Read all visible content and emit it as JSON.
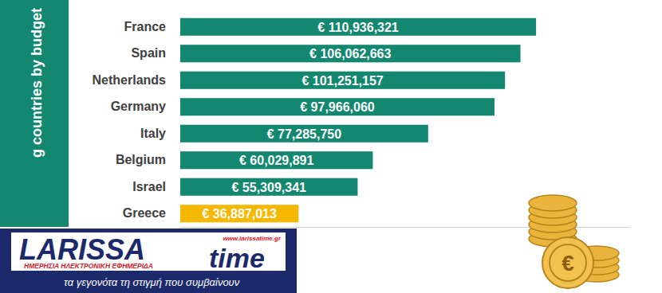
{
  "chart_data": {
    "type": "bar",
    "title": "g countries by budget",
    "orientation": "horizontal",
    "categories": [
      "France",
      "Spain",
      "Netherlands",
      "Germany",
      "Italy",
      "Belgium",
      "Israel",
      "Greece"
    ],
    "values": [
      110936321,
      106062663,
      101251157,
      97966060,
      77285750,
      60029891,
      55309341,
      36887013
    ],
    "value_labels": [
      "€ 110,936,321",
      "€ 106,062,663",
      "€ 101,251,157",
      "€ 97,966,060",
      "€ 77,285,750",
      "€ 60,029,891",
      "€ 55,309,341",
      "€ 36,887,013"
    ],
    "colors": [
      "#13876f",
      "#13876f",
      "#13876f",
      "#13876f",
      "#13876f",
      "#13876f",
      "#13876f",
      "#f5b800"
    ],
    "xlim": [
      0,
      140000000
    ],
    "xticks": [],
    "tick_labels": "y",
    "data_labels": true,
    "grid": false,
    "annotations": [
      "LARISSA",
      "time",
      "www.larissatime.gr",
      "ΗΜΕΡΗΣΙΑ ΗΛΕΚΤΡΟΝΙΚΗ ΕΦΗΜΕΡΙΔΑ",
      "τα γεγονότα τη στιγμή που συμβαίνουν",
      "€"
    ]
  }
}
